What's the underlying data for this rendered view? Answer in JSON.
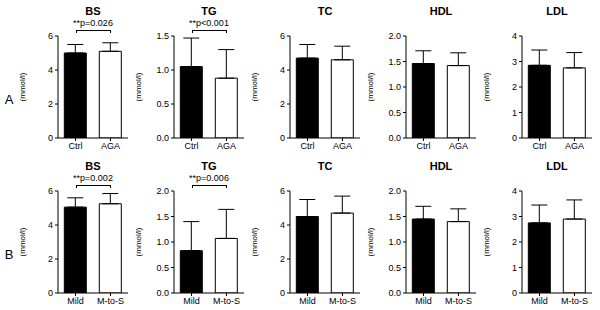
{
  "chart_data": [
    {
      "type": "bar",
      "panel": "A",
      "title": "BS",
      "ylabel": "(mmol/l)",
      "categories": [
        "Ctrl",
        "AGA"
      ],
      "values": [
        5.0,
        5.1
      ],
      "errors": [
        0.5,
        0.5
      ],
      "colors": [
        "#000000",
        "#ffffff"
      ],
      "ylim": [
        0,
        6
      ],
      "yticks": [
        0,
        2,
        4,
        6
      ],
      "annotation": "**p=0.026"
    },
    {
      "type": "bar",
      "panel": "A",
      "title": "TG",
      "ylabel": "(mmol/l)",
      "categories": [
        "Ctrl",
        "AGA"
      ],
      "values": [
        1.05,
        0.88
      ],
      "errors": [
        0.42,
        0.42
      ],
      "colors": [
        "#000000",
        "#ffffff"
      ],
      "ylim": [
        0,
        1.5
      ],
      "yticks": [
        {
          "value": 0,
          "label": "0.0"
        },
        0.5,
        {
          "value": 1,
          "label": "1.0"
        },
        1.5
      ],
      "annotation": "**p<0.001"
    },
    {
      "type": "bar",
      "panel": "A",
      "title": "TC",
      "ylabel": "(mmol/l)",
      "categories": [
        "Ctrl",
        "AGA"
      ],
      "values": [
        4.7,
        4.6
      ],
      "errors": [
        0.8,
        0.8
      ],
      "colors": [
        "#000000",
        "#ffffff"
      ],
      "ylim": [
        0,
        6
      ],
      "yticks": [
        0,
        2,
        4,
        6
      ]
    },
    {
      "type": "bar",
      "panel": "A",
      "title": "HDL",
      "ylabel": "(mmol/l)",
      "categories": [
        "Ctrl",
        "AGA"
      ],
      "values": [
        1.46,
        1.42
      ],
      "errors": [
        0.25,
        0.25
      ],
      "colors": [
        "#000000",
        "#ffffff"
      ],
      "ylim": [
        0,
        2
      ],
      "yticks": [
        {
          "value": 0,
          "label": "0.0"
        },
        0.5,
        {
          "value": 1,
          "label": "1.0"
        },
        1.5,
        {
          "value": 2,
          "label": "2.0"
        }
      ]
    },
    {
      "type": "bar",
      "panel": "A",
      "title": "LDL",
      "ylabel": "(mmol/l)",
      "categories": [
        "Ctrl",
        "AGA"
      ],
      "values": [
        2.85,
        2.75
      ],
      "errors": [
        0.6,
        0.6
      ],
      "colors": [
        "#000000",
        "#ffffff"
      ],
      "ylim": [
        0,
        4
      ],
      "yticks": [
        0,
        1,
        2,
        3,
        4
      ]
    },
    {
      "type": "bar",
      "panel": "B",
      "title": "BS",
      "ylabel": "(mmol/l)",
      "categories": [
        "Mild",
        "M-to-S"
      ],
      "values": [
        5.05,
        5.25
      ],
      "errors": [
        0.55,
        0.6
      ],
      "colors": [
        "#000000",
        "#ffffff"
      ],
      "ylim": [
        0,
        6
      ],
      "yticks": [
        0,
        2,
        4,
        6
      ],
      "annotation": "**p=0.002"
    },
    {
      "type": "bar",
      "panel": "B",
      "title": "TG",
      "ylabel": "(mmol/l)",
      "categories": [
        "Mild",
        "M-to-S"
      ],
      "values": [
        0.83,
        1.07
      ],
      "errors": [
        0.57,
        0.57
      ],
      "colors": [
        "#000000",
        "#ffffff"
      ],
      "ylim": [
        0,
        2
      ],
      "yticks": [
        {
          "value": 0,
          "label": "0.0"
        },
        0.5,
        {
          "value": 1,
          "label": "1.0"
        },
        1.5,
        {
          "value": 2,
          "label": "2.0"
        }
      ],
      "annotation": "**p=0.006"
    },
    {
      "type": "bar",
      "panel": "B",
      "title": "TC",
      "ylabel": "(mmol/l)",
      "categories": [
        "Mild",
        "M-to-S"
      ],
      "values": [
        4.5,
        4.7
      ],
      "errors": [
        1.0,
        1.0
      ],
      "colors": [
        "#000000",
        "#ffffff"
      ],
      "ylim": [
        0,
        6
      ],
      "yticks": [
        0,
        2,
        4,
        6
      ]
    },
    {
      "type": "bar",
      "panel": "B",
      "title": "HDL",
      "ylabel": "(mmol/l)",
      "categories": [
        "Mild",
        "M-to-S"
      ],
      "values": [
        1.45,
        1.4
      ],
      "errors": [
        0.25,
        0.25
      ],
      "colors": [
        "#000000",
        "#ffffff"
      ],
      "ylim": [
        0,
        2
      ],
      "yticks": [
        {
          "value": 0,
          "label": "0.0"
        },
        0.5,
        {
          "value": 1,
          "label": "1.0"
        },
        1.5,
        {
          "value": 2,
          "label": "2.0"
        }
      ]
    },
    {
      "type": "bar",
      "panel": "B",
      "title": "LDL",
      "ylabel": "(mmol/l)",
      "categories": [
        "Mild",
        "M-to-S"
      ],
      "values": [
        2.75,
        2.9
      ],
      "errors": [
        0.7,
        0.75
      ],
      "colors": [
        "#000000",
        "#ffffff"
      ],
      "ylim": [
        0,
        4
      ],
      "yticks": [
        0,
        1,
        2,
        3,
        4
      ]
    }
  ]
}
